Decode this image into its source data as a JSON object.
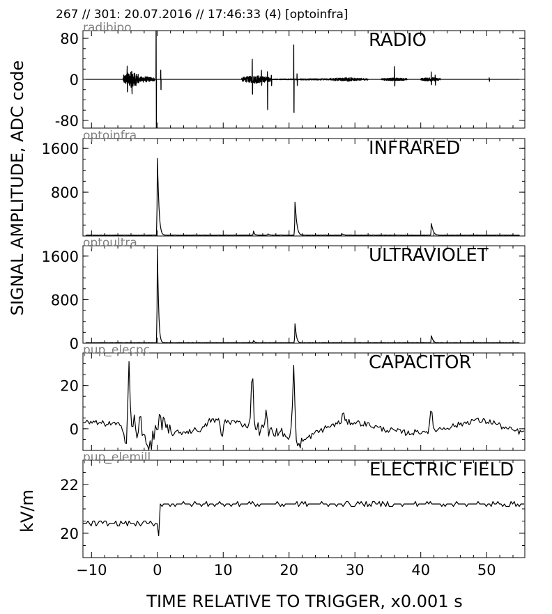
{
  "header": "267 // 301:   20.07.2016 // 17:46:33 (4)  [optoinfra]",
  "y_title_main": "SIGNAL AMPLITUDE,  ADC code",
  "y_title_field": "kV/m",
  "x_title": "TIME RELATIVE TO TRIGGER,   x0.001 s",
  "chart_data": {
    "type": "line",
    "x_range": [
      -11.3,
      55.8
    ],
    "x_ticks": [
      -10,
      0,
      10,
      20,
      30,
      40,
      50
    ],
    "x_tick_labels": [
      "−10",
      "0",
      "10",
      "20",
      "30",
      "40",
      "50"
    ],
    "xlabel": "TIME RELATIVE TO TRIGGER,   x0.001 s",
    "panels": [
      {
        "id": "radio",
        "source": "radibipo",
        "title": "RADIO",
        "ylim": [
          -95,
          95
        ],
        "y_ticks": [
          80,
          0,
          -80
        ],
        "y_tick_labels": [
          "80",
          "0",
          "-80"
        ],
        "baseline": 0,
        "features": [
          {
            "kind": "burst",
            "center": -4,
            "halfwidth": 1.2,
            "amp": 16
          },
          {
            "kind": "burst",
            "center": -2,
            "halfwidth": 1.6,
            "amp": 6
          },
          {
            "kind": "burst",
            "center": 15,
            "halfwidth": 2.2,
            "amp": 8
          },
          {
            "kind": "burst",
            "center": 24,
            "halfwidth": 7,
            "amp": 1.5
          },
          {
            "kind": "burst",
            "center": 29,
            "halfwidth": 3,
            "amp": 3
          },
          {
            "kind": "burst",
            "center": 36,
            "halfwidth": 2,
            "amp": 3
          },
          {
            "kind": "burst",
            "center": 41.5,
            "halfwidth": 1.5,
            "amp": 4
          },
          {
            "kind": "bip",
            "t": -4.6,
            "up": 18,
            "down": -16
          },
          {
            "kind": "bip",
            "t": -3.9,
            "up": 22,
            "down": -20
          },
          {
            "kind": "bip",
            "t": -0.2,
            "up": 95,
            "down": -95
          },
          {
            "kind": "bip",
            "t": 0.5,
            "up": 18,
            "down": -20
          },
          {
            "kind": "bip",
            "t": 14.4,
            "up": 38,
            "down": -30
          },
          {
            "kind": "bip",
            "t": 15.8,
            "up": 18,
            "down": -16
          },
          {
            "kind": "bip",
            "t": 16.7,
            "up": 14,
            "down": -55
          },
          {
            "kind": "bip",
            "t": 17.3,
            "up": 8,
            "down": -12
          },
          {
            "kind": "bip",
            "t": 20.7,
            "up": 68,
            "down": -65
          },
          {
            "kind": "bip",
            "t": 21.2,
            "up": 10,
            "down": -12
          },
          {
            "kind": "bip",
            "t": 36,
            "up": 22,
            "down": -12
          },
          {
            "kind": "bip",
            "t": 41.6,
            "up": 14,
            "down": -10
          },
          {
            "kind": "bip",
            "t": 42.2,
            "up": 8,
            "down": -10
          },
          {
            "kind": "bip",
            "t": 50.4,
            "up": 3,
            "down": -4
          }
        ]
      },
      {
        "id": "infrared",
        "source": "optoinfra",
        "title": "INFRARED",
        "ylim": [
          0,
          1780
        ],
        "y_ticks": [
          1600,
          800
        ],
        "y_tick_labels": [
          "1600",
          "800"
        ],
        "baseline": 15,
        "noise": 4,
        "pulses": [
          {
            "t": 0,
            "peak": 1400,
            "width": 0.25
          },
          {
            "t": 14.6,
            "peak": 70,
            "width": 0.18
          },
          {
            "t": 16.8,
            "peak": 25,
            "width": 0.2
          },
          {
            "t": 20.9,
            "peak": 600,
            "width": 0.28
          },
          {
            "t": 28,
            "peak": 25,
            "width": 0.3
          },
          {
            "t": 41.6,
            "peak": 210,
            "width": 0.3
          }
        ]
      },
      {
        "id": "ultraviolet",
        "source": "optoultra",
        "title": "ULTRAVIOLET",
        "ylim": [
          0,
          1790
        ],
        "y_ticks": [
          1600,
          800,
          0
        ],
        "y_tick_labels": [
          "1600",
          "800",
          "0"
        ],
        "baseline": 10,
        "noise": 3,
        "pulses": [
          {
            "t": 0,
            "peak": 1720,
            "width": 0.2
          },
          {
            "t": 14.6,
            "peak": 40,
            "width": 0.18
          },
          {
            "t": 20.9,
            "peak": 350,
            "width": 0.22
          },
          {
            "t": 41.6,
            "peak": 130,
            "width": 0.25
          }
        ]
      },
      {
        "id": "capacitor",
        "source": "pup_elecpc",
        "title": "CAPACITOR",
        "ylim": [
          -10,
          35
        ],
        "y_ticks": [
          20,
          0
        ],
        "y_tick_labels": [
          "20",
          "0"
        ],
        "trend": [
          [
            -11.3,
            3
          ],
          [
            -6,
            2
          ],
          [
            -4.5,
            -3
          ],
          [
            -1,
            -6
          ],
          [
            0,
            -2
          ],
          [
            3,
            -2
          ],
          [
            7,
            0
          ],
          [
            8,
            4
          ],
          [
            12,
            3
          ],
          [
            13,
            2
          ],
          [
            16,
            0
          ],
          [
            18,
            -2
          ],
          [
            20,
            -2
          ],
          [
            22,
            -6
          ],
          [
            24,
            -2
          ],
          [
            26,
            1
          ],
          [
            28,
            3
          ],
          [
            30,
            3
          ],
          [
            32,
            2
          ],
          [
            34,
            0
          ],
          [
            38,
            -2
          ],
          [
            41,
            -1
          ],
          [
            43,
            0
          ],
          [
            46,
            2
          ],
          [
            48,
            4
          ],
          [
            51,
            3
          ],
          [
            53,
            0
          ],
          [
            55.8,
            -2
          ]
        ],
        "noise": 0.9,
        "spikes": [
          {
            "t": -4.3,
            "v": 31
          },
          {
            "t": -3.5,
            "v": 7
          },
          {
            "t": -2.6,
            "v": 9
          },
          {
            "t": -1.6,
            "v": -8
          },
          {
            "t": 0.4,
            "v": 10
          },
          {
            "t": 1.0,
            "v": 7
          },
          {
            "t": 14.4,
            "v": 31
          },
          {
            "t": 16.5,
            "v": 8
          },
          {
            "t": 20.7,
            "v": 30
          },
          {
            "t": 21.4,
            "v": -9
          },
          {
            "t": 28.2,
            "v": 8
          },
          {
            "t": 41.6,
            "v": 10
          },
          {
            "t": 9.8,
            "v": -6
          }
        ]
      },
      {
        "id": "electric-field",
        "source": "pup_elemill",
        "title": "ELECTRIC FIELD",
        "ylim": [
          19,
          23
        ],
        "y_ticks": [
          22,
          20
        ],
        "y_tick_labels": [
          "22",
          "20"
        ],
        "levels": [
          {
            "t0": -11.3,
            "t1": 0.2,
            "v": 20.4
          },
          {
            "t0": 0.2,
            "t1": 55.8,
            "v": 21.2
          }
        ],
        "dip": {
          "t": 0.1,
          "v": 19.9
        },
        "step": 0.1
      }
    ]
  }
}
